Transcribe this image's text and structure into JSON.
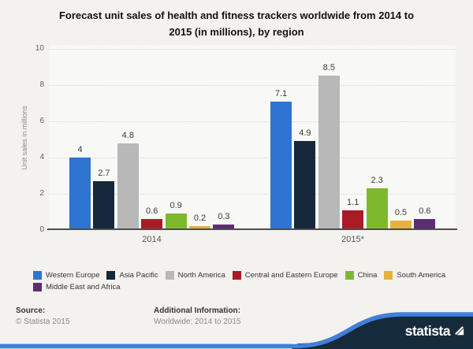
{
  "title_lines": [
    "Forecast unit sales of health and fitness trackers worldwide from 2014 to",
    "2015 (in millions), by region"
  ],
  "chart_data": {
    "type": "bar",
    "title": "Forecast unit sales of health and fitness trackers worldwide from 2014 to 2015 (in millions), by region",
    "ylabel": "Unit sales in millions",
    "xlabel": "",
    "categories": [
      "2014",
      "2015*"
    ],
    "series": [
      {
        "name": "Western Europe",
        "color": "#2f74d0",
        "values": [
          4,
          7.1
        ]
      },
      {
        "name": "Asia Pacific",
        "color": "#16283c",
        "values": [
          2.7,
          4.9
        ]
      },
      {
        "name": "North America",
        "color": "#b8b8b8",
        "values": [
          4.8,
          8.5
        ]
      },
      {
        "name": "Central and Eastern Europe",
        "color": "#ab1b25",
        "values": [
          0.6,
          1.1
        ]
      },
      {
        "name": "China",
        "color": "#7eb92d",
        "values": [
          0.9,
          2.3
        ]
      },
      {
        "name": "South America",
        "color": "#e7b23c",
        "values": [
          0.2,
          0.5
        ]
      },
      {
        "name": "Middle East and Africa",
        "color": "#5d2c72",
        "values": [
          0.3,
          0.6
        ]
      }
    ],
    "ylim": [
      0,
      10
    ],
    "yticks": [
      0,
      2,
      4,
      6,
      8,
      10
    ],
    "grid": "dotted-horizontal",
    "legend_position": "bottom",
    "data_labels": true
  },
  "footer": {
    "source_label": "Source:",
    "source_value": "© Statista 2015",
    "info_label": "Additional Information:",
    "info_value": "Worldwide; 2014 to 2015",
    "brand": "statista"
  },
  "colors": {
    "footer_navy": "#152a3b",
    "ribbon_blue": "#4080da",
    "background": "#f3f2ef",
    "plot_background": "#f8f8f6"
  }
}
